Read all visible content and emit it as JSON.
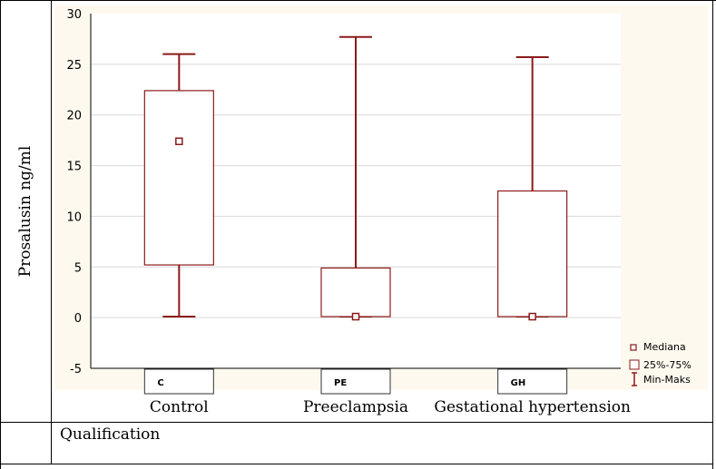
{
  "figure": {
    "ylabel": "Prosalusin ng/ml",
    "footer": "Qualification"
  },
  "chart_data": {
    "type": "boxplot",
    "ylabel": "Prosalusin ng/ml",
    "ylim": [
      -5,
      30
    ],
    "yticks": [
      -5,
      0,
      5,
      10,
      15,
      20,
      25,
      30
    ],
    "grid": true,
    "legend_position": "bottom-right",
    "legend": [
      "Mediana",
      "25%-75%",
      "Min-Maks"
    ],
    "categories": [
      "Control",
      "Preeclampsia",
      "Gestational hypertension"
    ],
    "category_codes": [
      "C",
      "PE",
      "GH"
    ],
    "boxes": [
      {
        "category": "Control",
        "code": "C",
        "min": 0.1,
        "q1": 5.2,
        "median": 17.4,
        "q3": 22.4,
        "max": 26.0
      },
      {
        "category": "Preeclampsia",
        "code": "PE",
        "min": 0.1,
        "q1": 0.1,
        "median": 0.1,
        "q3": 4.9,
        "max": 27.7
      },
      {
        "category": "Gestational hypertension",
        "code": "GH",
        "min": 0.1,
        "q1": 0.1,
        "median": 0.1,
        "q3": 12.5,
        "max": 25.7
      }
    ],
    "colors": {
      "box": "#8b1a1a",
      "plot_bg": "#fdf9ee",
      "grid": "#d9d9d9"
    }
  }
}
